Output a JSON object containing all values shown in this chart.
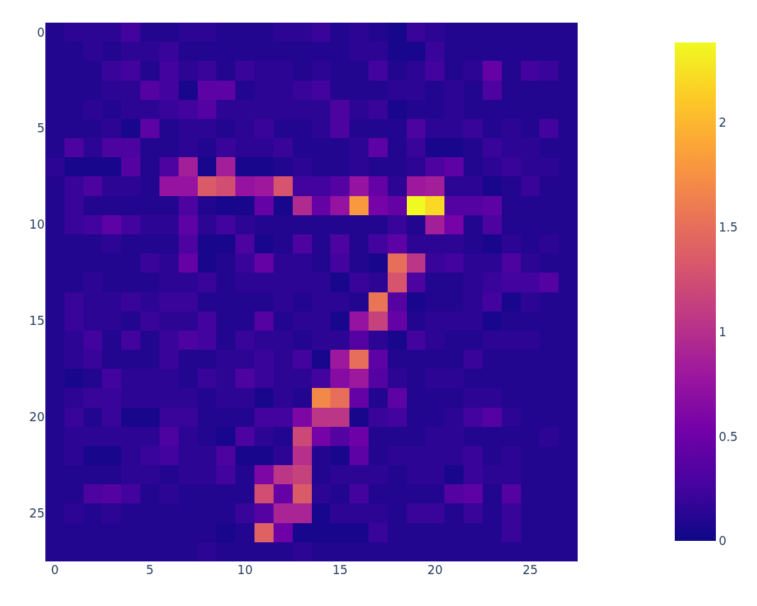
{
  "chart_data": {
    "type": "heatmap",
    "xlim": [
      -0.5,
      27.5
    ],
    "ylim": [
      27.5,
      -0.5
    ],
    "xticks": [
      0,
      5,
      10,
      15,
      20,
      25
    ],
    "yticks": [
      0,
      5,
      10,
      15,
      20,
      25
    ],
    "clim": [
      0,
      2.38
    ],
    "cticks": [
      0,
      0.5,
      1,
      1.5,
      2
    ],
    "cells": [
      [
        0.1,
        0.15,
        0.15,
        0.15,
        0.25,
        0.1,
        0.1,
        0.15,
        0.15,
        0.1,
        0.1,
        0.1,
        0.15,
        0.15,
        0.2,
        0.1,
        0.15,
        0.1,
        0.05,
        0.2,
        0.15,
        0.1,
        0.1,
        0.1,
        0.1,
        0.1,
        0.1,
        0.1
      ],
      [
        0.1,
        0.1,
        0.15,
        0.1,
        0.15,
        0.15,
        0.2,
        0.1,
        0.1,
        0.1,
        0.1,
        0.1,
        0.1,
        0.1,
        0.1,
        0.1,
        0.15,
        0.15,
        0.05,
        0.05,
        0.2,
        0.1,
        0.1,
        0.1,
        0.1,
        0.1,
        0.1,
        0.1
      ],
      [
        0.1,
        0.1,
        0.1,
        0.2,
        0.25,
        0.1,
        0.25,
        0.15,
        0.2,
        0.1,
        0.2,
        0.15,
        0.15,
        0.1,
        0.15,
        0.1,
        0.1,
        0.25,
        0.1,
        0.15,
        0.25,
        0.1,
        0.15,
        0.45,
        0.1,
        0.25,
        0.2,
        0.1
      ],
      [
        0.1,
        0.1,
        0.1,
        0.15,
        0.15,
        0.35,
        0.25,
        0.05,
        0.4,
        0.4,
        0.1,
        0.15,
        0.15,
        0.2,
        0.25,
        0.1,
        0.1,
        0.1,
        0.15,
        0.15,
        0.1,
        0.15,
        0.1,
        0.3,
        0.1,
        0.1,
        0.1,
        0.1
      ],
      [
        0.1,
        0.1,
        0.15,
        0.1,
        0.15,
        0.15,
        0.2,
        0.25,
        0.35,
        0.15,
        0.15,
        0.15,
        0.15,
        0.15,
        0.15,
        0.3,
        0.15,
        0.2,
        0.05,
        0.1,
        0.1,
        0.15,
        0.1,
        0.1,
        0.1,
        0.1,
        0.1,
        0.1
      ],
      [
        0.1,
        0.1,
        0.1,
        0.15,
        0.05,
        0.4,
        0.1,
        0.15,
        0.15,
        0.1,
        0.15,
        0.2,
        0.1,
        0.1,
        0.15,
        0.3,
        0.1,
        0.1,
        0.1,
        0.3,
        0.15,
        0.15,
        0.2,
        0.1,
        0.15,
        0.1,
        0.25,
        0.1
      ],
      [
        0.1,
        0.3,
        0.15,
        0.3,
        0.3,
        0.1,
        0.1,
        0.15,
        0.1,
        0.2,
        0.15,
        0.15,
        0.2,
        0.1,
        0.1,
        0.1,
        0.15,
        0.4,
        0.1,
        0.2,
        0.05,
        0.05,
        0.1,
        0.2,
        0.15,
        0.15,
        0.1,
        0.1
      ],
      [
        0.15,
        0.05,
        0.05,
        0.05,
        0.35,
        0.1,
        0.3,
        0.85,
        0.05,
        0.85,
        0.05,
        0.05,
        0.1,
        0.15,
        0.1,
        0.1,
        0.15,
        0.1,
        0.1,
        0.15,
        0.3,
        0.4,
        0.1,
        0.15,
        0.2,
        0.15,
        0.15,
        0.1
      ],
      [
        0.1,
        0.2,
        0.3,
        0.15,
        0.15,
        0.1,
        0.75,
        0.75,
        1.35,
        1.25,
        0.75,
        0.8,
        1.3,
        0.25,
        0.25,
        0.35,
        0.75,
        0.45,
        0.15,
        0.8,
        0.85,
        0.15,
        0.15,
        0.05,
        0.1,
        0.2,
        0.1,
        0.1
      ],
      [
        0.1,
        0.2,
        0.1,
        0.1,
        0.1,
        0.1,
        0.1,
        0.3,
        0.1,
        0.05,
        0.05,
        0.45,
        0.05,
        0.95,
        0.45,
        0.75,
        1.8,
        0.55,
        0.45,
        2.38,
        2.2,
        0.35,
        0.35,
        0.4,
        0.1,
        0.1,
        0.1,
        0.1
      ],
      [
        0.1,
        0.2,
        0.25,
        0.4,
        0.25,
        0.15,
        0.15,
        0.4,
        0.15,
        0.25,
        0.15,
        0.1,
        0.1,
        0.1,
        0.1,
        0.1,
        0.1,
        0.1,
        0.2,
        0.1,
        0.85,
        0.55,
        0.1,
        0.3,
        0.1,
        0.1,
        0.1,
        0.1
      ],
      [
        0.1,
        0.1,
        0.1,
        0.15,
        0.1,
        0.1,
        0.1,
        0.3,
        0.05,
        0.05,
        0.3,
        0.05,
        0.1,
        0.3,
        0.1,
        0.3,
        0.1,
        0.25,
        0.4,
        0.15,
        0.15,
        0.15,
        0.1,
        0.05,
        0.15,
        0.1,
        0.15,
        0.1
      ],
      [
        0.1,
        0.1,
        0.1,
        0.1,
        0.1,
        0.2,
        0.15,
        0.45,
        0.05,
        0.1,
        0.2,
        0.45,
        0.15,
        0.15,
        0.1,
        0.25,
        0.1,
        0.05,
        1.5,
        1.05,
        0.2,
        0.25,
        0.15,
        0.15,
        0.3,
        0.15,
        0.1,
        0.1
      ],
      [
        0.1,
        0.1,
        0.15,
        0.1,
        0.1,
        0.1,
        0.15,
        0.15,
        0.2,
        0.1,
        0.15,
        0.15,
        0.15,
        0.15,
        0.15,
        0.05,
        0.2,
        0.15,
        1.3,
        0.3,
        0.1,
        0.1,
        0.15,
        0.2,
        0.25,
        0.25,
        0.35,
        0.1
      ],
      [
        0.1,
        0.2,
        0.15,
        0.15,
        0.2,
        0.15,
        0.2,
        0.2,
        0.1,
        0.1,
        0.1,
        0.1,
        0.15,
        0.1,
        0.15,
        0.15,
        0.1,
        1.55,
        0.35,
        0.05,
        0.1,
        0.1,
        0.15,
        0.25,
        0.05,
        0.15,
        0.1,
        0.1
      ],
      [
        0.1,
        0.2,
        0.15,
        0.15,
        0.1,
        0.2,
        0.15,
        0.15,
        0.25,
        0.1,
        0.1,
        0.35,
        0.1,
        0.15,
        0.15,
        0.05,
        0.75,
        1.15,
        0.45,
        0.1,
        0.15,
        0.15,
        0.15,
        0.05,
        0.1,
        0.1,
        0.1,
        0.1
      ],
      [
        0.1,
        0.15,
        0.25,
        0.1,
        0.25,
        0.1,
        0.2,
        0.3,
        0.25,
        0.1,
        0.2,
        0.15,
        0.15,
        0.1,
        0.15,
        0.15,
        0.35,
        0.15,
        0.05,
        0.25,
        0.15,
        0.1,
        0.1,
        0.15,
        0.15,
        0.15,
        0.1,
        0.1
      ],
      [
        0.1,
        0.15,
        0.2,
        0.1,
        0.1,
        0.1,
        0.2,
        0.1,
        0.1,
        0.15,
        0.15,
        0.2,
        0.15,
        0.25,
        0.05,
        0.8,
        1.5,
        0.4,
        0.1,
        0.1,
        0.1,
        0.1,
        0.2,
        0.1,
        0.1,
        0.1,
        0.1,
        0.1
      ],
      [
        0.1,
        0.05,
        0.1,
        0.25,
        0.15,
        0.15,
        0.15,
        0.1,
        0.2,
        0.15,
        0.3,
        0.2,
        0.15,
        0.15,
        0.25,
        0.65,
        0.8,
        0.35,
        0.15,
        0.1,
        0.15,
        0.15,
        0.1,
        0.1,
        0.1,
        0.1,
        0.1,
        0.1
      ],
      [
        0.1,
        0.15,
        0.2,
        0.2,
        0.15,
        0.15,
        0.15,
        0.15,
        0.1,
        0.15,
        0.15,
        0.05,
        0.15,
        0.1,
        1.7,
        1.5,
        0.45,
        0.1,
        0.4,
        0.1,
        0.1,
        0.1,
        0.15,
        0.15,
        0.1,
        0.1,
        0.1,
        0.1
      ],
      [
        0.1,
        0.2,
        0.1,
        0.2,
        0.05,
        0.05,
        0.2,
        0.2,
        0.1,
        0.1,
        0.1,
        0.25,
        0.25,
        0.6,
        1.05,
        1.05,
        0.05,
        0.2,
        0.25,
        0.1,
        0.1,
        0.15,
        0.25,
        0.35,
        0.15,
        0.1,
        0.1,
        0.1
      ],
      [
        0.1,
        0.15,
        0.15,
        0.15,
        0.15,
        0.15,
        0.3,
        0.15,
        0.1,
        0.05,
        0.3,
        0.15,
        0.1,
        1.2,
        0.55,
        0.35,
        0.5,
        0.1,
        0.1,
        0.1,
        0.15,
        0.15,
        0.1,
        0.1,
        0.1,
        0.1,
        0.15,
        0.1
      ],
      [
        0.1,
        0.15,
        0.05,
        0.05,
        0.15,
        0.2,
        0.25,
        0.15,
        0.15,
        0.3,
        0.05,
        0.05,
        0.15,
        1.0,
        0.1,
        0.05,
        0.4,
        0.1,
        0.15,
        0.15,
        0.15,
        0.15,
        0.2,
        0.1,
        0.15,
        0.1,
        0.1,
        0.1
      ],
      [
        0.1,
        0.1,
        0.1,
        0.1,
        0.15,
        0.15,
        0.1,
        0.15,
        0.15,
        0.25,
        0.1,
        0.6,
        1.05,
        1.15,
        0.1,
        0.15,
        0.15,
        0.15,
        0.1,
        0.15,
        0.15,
        0.05,
        0.2,
        0.15,
        0.15,
        0.1,
        0.1,
        0.1
      ],
      [
        0.1,
        0.1,
        0.3,
        0.35,
        0.25,
        0.1,
        0.15,
        0.1,
        0.1,
        0.1,
        0.1,
        1.25,
        0.45,
        1.35,
        0.15,
        0.1,
        0.25,
        0.1,
        0.1,
        0.1,
        0.1,
        0.35,
        0.4,
        0.1,
        0.35,
        0.1,
        0.1,
        0.1
      ],
      [
        0.1,
        0.15,
        0.1,
        0.15,
        0.1,
        0.1,
        0.1,
        0.1,
        0.1,
        0.1,
        0.2,
        0.35,
        0.9,
        0.9,
        0.05,
        0.15,
        0.15,
        0.15,
        0.1,
        0.2,
        0.2,
        0.1,
        0.2,
        0.1,
        0.2,
        0.1,
        0.1,
        0.1
      ],
      [
        0.1,
        0.1,
        0.1,
        0.1,
        0.1,
        0.1,
        0.1,
        0.1,
        0.1,
        0.05,
        0.1,
        1.4,
        0.5,
        0.05,
        0.05,
        0.05,
        0.05,
        0.2,
        0.1,
        0.1,
        0.1,
        0.1,
        0.1,
        0.1,
        0.2,
        0.1,
        0.1,
        0.1
      ],
      [
        0.1,
        0.1,
        0.1,
        0.1,
        0.1,
        0.1,
        0.1,
        0.1,
        0.15,
        0.1,
        0.1,
        0.1,
        0.1,
        0.15,
        0.1,
        0.1,
        0.1,
        0.1,
        0.1,
        0.1,
        0.1,
        0.1,
        0.1,
        0.1,
        0.1,
        0.1,
        0.1,
        0.1
      ]
    ]
  }
}
